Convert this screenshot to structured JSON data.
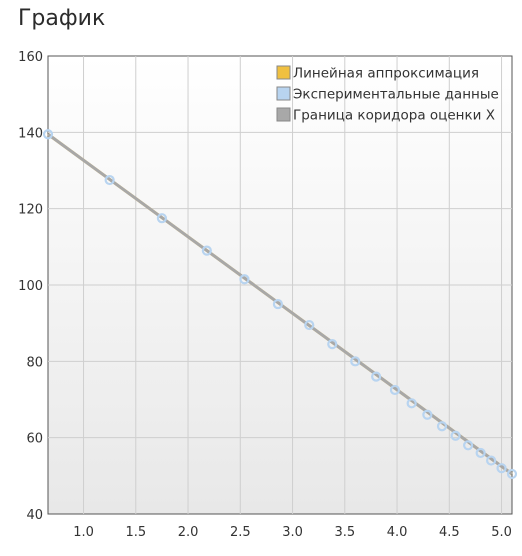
{
  "page": {
    "title": "График"
  },
  "chart_data": {
    "type": "scatter",
    "title": "График",
    "xlabel": "",
    "ylabel": "",
    "xlim": [
      0.66,
      5.1
    ],
    "ylim": [
      40,
      160
    ],
    "x_ticks": [
      1.0,
      1.5,
      2.0,
      2.5,
      3.0,
      3.5,
      4.0,
      4.5,
      5.0
    ],
    "x_tick_labels": [
      "1.0",
      "1.5",
      "2.0",
      "2.5",
      "3.0",
      "3.5",
      "4.0",
      "4.5",
      "5.0"
    ],
    "y_ticks": [
      40,
      60,
      80,
      100,
      120,
      140,
      160
    ],
    "y_tick_labels": [
      "40",
      "60",
      "80",
      "100",
      "120",
      "140",
      "160"
    ],
    "grid": true,
    "legend_position": "top-right",
    "series": [
      {
        "name": "Линейная аппроксимация",
        "kind": "line",
        "color": "#f0c040",
        "x": [
          0.66,
          5.1
        ],
        "y": [
          139.5,
          50.5
        ]
      },
      {
        "name": "Экспериментальные данные",
        "kind": "points",
        "color": "#b8d4f0",
        "x": [
          0.66,
          1.25,
          1.75,
          2.18,
          2.54,
          2.86,
          3.16,
          3.38,
          3.6,
          3.8,
          3.98,
          4.14,
          4.29,
          4.43,
          4.56,
          4.68,
          4.8,
          4.9,
          5.0,
          5.1
        ],
        "y": [
          139.5,
          127.5,
          117.5,
          109,
          101.5,
          95,
          89.5,
          84.5,
          80,
          76,
          72.5,
          69,
          66,
          63,
          60.5,
          58,
          56,
          54,
          52,
          50.5
        ]
      },
      {
        "name": "Граница коридора оценки X",
        "kind": "line",
        "color": "#a8a8a8",
        "x": [
          0.66,
          5.1
        ],
        "y": [
          139.5,
          50.5
        ]
      }
    ]
  }
}
